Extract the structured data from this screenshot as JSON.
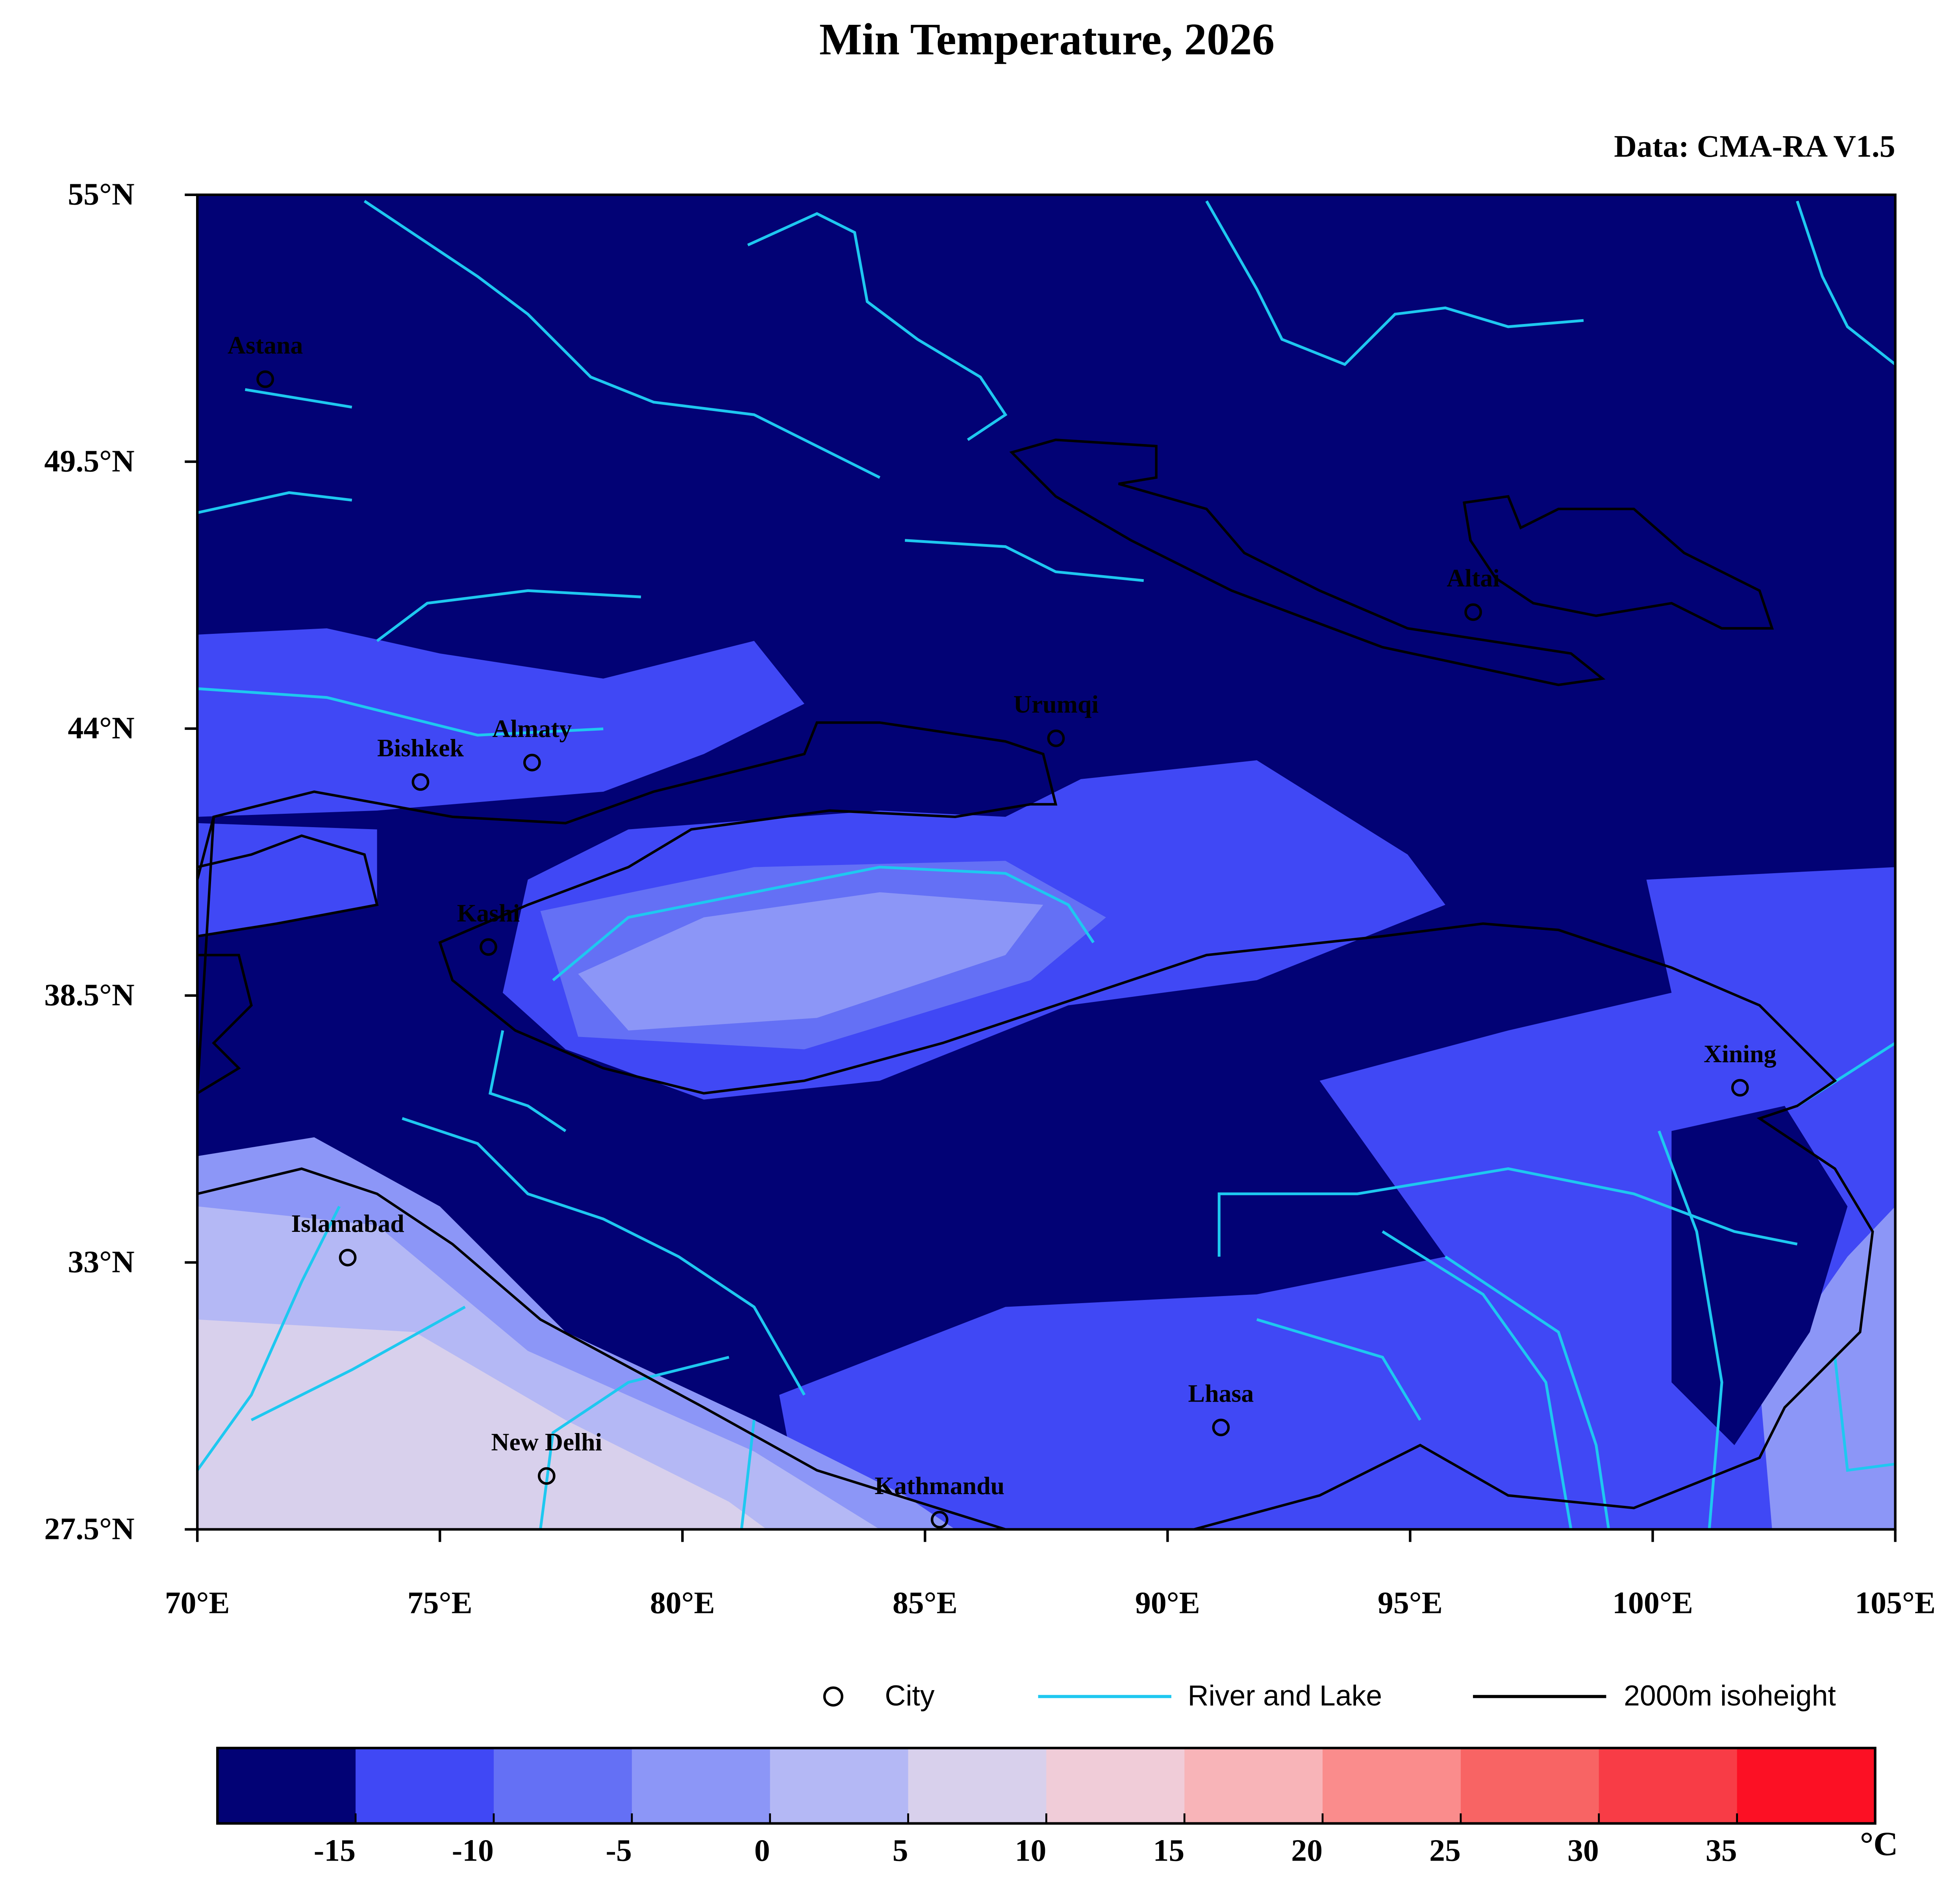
{
  "map": {
    "title": "Min Temperature, 2026",
    "source": "Data: CMA-RA V1.5",
    "lonlim": [
      70,
      105
    ],
    "latlim": [
      27.5,
      55
    ],
    "lon_ticks": [
      {
        "value": 70,
        "label": "70°E"
      },
      {
        "value": 75,
        "label": "75°E"
      },
      {
        "value": 80,
        "label": "80°E"
      },
      {
        "value": 85,
        "label": "85°E"
      },
      {
        "value": 90,
        "label": "90°E"
      },
      {
        "value": 95,
        "label": "95°E"
      },
      {
        "value": 100,
        "label": "100°E"
      },
      {
        "value": 105,
        "label": "105°E"
      }
    ],
    "lat_ticks": [
      {
        "value": 55,
        "label": "55°N"
      },
      {
        "value": 49.5,
        "label": "49.5°N"
      },
      {
        "value": 44,
        "label": "44°N"
      },
      {
        "value": 38.5,
        "label": "38.5°N"
      },
      {
        "value": 33,
        "label": "33°N"
      },
      {
        "value": 27.5,
        "label": "27.5°N"
      }
    ],
    "cities": [
      {
        "name": "Astana",
        "lon": 71.4,
        "lat": 51.2
      },
      {
        "name": "Bishkek",
        "lon": 74.6,
        "lat": 42.9
      },
      {
        "name": "Almaty",
        "lon": 76.9,
        "lat": 43.3
      },
      {
        "name": "Urumqi",
        "lon": 87.7,
        "lat": 43.8
      },
      {
        "name": "Altai",
        "lon": 96.3,
        "lat": 46.4
      },
      {
        "name": "Kashi",
        "lon": 76.0,
        "lat": 39.5
      },
      {
        "name": "Xining",
        "lon": 101.8,
        "lat": 36.6
      },
      {
        "name": "Islamabad",
        "lon": 73.1,
        "lat": 33.1
      },
      {
        "name": "Lhasa",
        "lon": 91.1,
        "lat": 29.6
      },
      {
        "name": "New Delhi",
        "lon": 77.2,
        "lat": 28.6
      },
      {
        "name": "Kathmandu",
        "lon": 85.3,
        "lat": 27.7
      }
    ],
    "legend": [
      "City",
      "River and Lake",
      "2000m isoheight"
    ],
    "colorbar": {
      "range": [
        -20,
        40
      ],
      "ticks": [
        -15,
        -10,
        -5,
        0,
        5,
        10,
        15,
        20,
        25,
        30,
        35
      ],
      "colors": [
        "#020275",
        "#4048f5",
        "#6470f5",
        "#8c96f7",
        "#b4b8f5",
        "#d8d0ec",
        "#f0ccd8",
        "#f8b4b8",
        "#fa8c8c",
        "#f86464",
        "#f83c46",
        "#fc1024"
      ],
      "unit": "°C"
    }
  }
}
